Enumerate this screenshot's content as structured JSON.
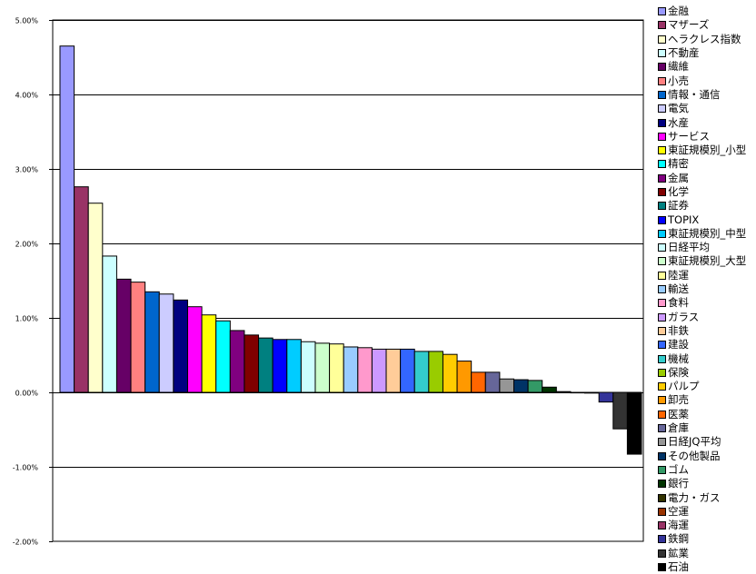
{
  "chart_data": {
    "type": "bar",
    "title": "",
    "xlabel": "",
    "ylabel": "",
    "ylim": [
      -2.0,
      5.0
    ],
    "yticks": [
      "5.00%",
      "4.00%",
      "3.00%",
      "2.00%",
      "1.00%",
      "0.00%",
      "-1.00%",
      "-2.00%"
    ],
    "ytick_values": [
      5,
      4,
      3,
      2,
      1,
      0,
      -1,
      -2
    ],
    "grid": true,
    "legend_position": "right",
    "series": [
      {
        "name": "金融",
        "value": 4.65,
        "color": "#9999ff"
      },
      {
        "name": "マザーズ",
        "value": 2.76,
        "color": "#993366"
      },
      {
        "name": "ヘラクレス指数",
        "value": 2.54,
        "color": "#ffffcc"
      },
      {
        "name": "不動産",
        "value": 1.83,
        "color": "#ccffff"
      },
      {
        "name": "繊維",
        "value": 1.52,
        "color": "#660066"
      },
      {
        "name": "小売",
        "value": 1.48,
        "color": "#ff8080"
      },
      {
        "name": "情報・通信",
        "value": 1.35,
        "color": "#0066cc"
      },
      {
        "name": "電気",
        "value": 1.32,
        "color": "#ccccff"
      },
      {
        "name": "水産",
        "value": 1.24,
        "color": "#000080"
      },
      {
        "name": "サービス",
        "value": 1.15,
        "color": "#ff00ff"
      },
      {
        "name": "東証規模別_小型",
        "value": 1.04,
        "color": "#ffff00"
      },
      {
        "name": "精密",
        "value": 0.96,
        "color": "#00ffff"
      },
      {
        "name": "金属",
        "value": 0.83,
        "color": "#800080"
      },
      {
        "name": "化学",
        "value": 0.77,
        "color": "#800000"
      },
      {
        "name": "証券",
        "value": 0.73,
        "color": "#008080"
      },
      {
        "name": "TOPIX",
        "value": 0.71,
        "color": "#0000ff"
      },
      {
        "name": "東証規模別_中型",
        "value": 0.71,
        "color": "#00ccff"
      },
      {
        "name": "日経平均",
        "value": 0.68,
        "color": "#ccffff"
      },
      {
        "name": "東証規模別_大型",
        "value": 0.66,
        "color": "#ccffcc"
      },
      {
        "name": "陸運",
        "value": 0.65,
        "color": "#ffff99"
      },
      {
        "name": "輸送",
        "value": 0.61,
        "color": "#99ccff"
      },
      {
        "name": "食料",
        "value": 0.6,
        "color": "#ff99cc"
      },
      {
        "name": "ガラス",
        "value": 0.58,
        "color": "#cc99ff"
      },
      {
        "name": "非鉄",
        "value": 0.58,
        "color": "#ffcc99"
      },
      {
        "name": "建設",
        "value": 0.58,
        "color": "#3366ff"
      },
      {
        "name": "機械",
        "value": 0.55,
        "color": "#33cccc"
      },
      {
        "name": "保険",
        "value": 0.55,
        "color": "#99cc00"
      },
      {
        "name": "パルプ",
        "value": 0.51,
        "color": "#ffcc00"
      },
      {
        "name": "卸売",
        "value": 0.42,
        "color": "#ff9900"
      },
      {
        "name": "医薬",
        "value": 0.27,
        "color": "#ff6600"
      },
      {
        "name": "倉庫",
        "value": 0.27,
        "color": "#666699"
      },
      {
        "name": "日経JQ平均",
        "value": 0.18,
        "color": "#969696"
      },
      {
        "name": "その他製品",
        "value": 0.17,
        "color": "#003366"
      },
      {
        "name": "ゴム",
        "value": 0.16,
        "color": "#339966"
      },
      {
        "name": "銀行",
        "value": 0.07,
        "color": "#003300"
      },
      {
        "name": "電力・ガス",
        "value": 0.01,
        "color": "#333300"
      },
      {
        "name": "空運",
        "value": 0.0,
        "color": "#993300"
      },
      {
        "name": "海運",
        "value": -0.01,
        "color": "#993366"
      },
      {
        "name": "鉄鋼",
        "value": -0.13,
        "color": "#333399"
      },
      {
        "name": "鉱業",
        "value": -0.49,
        "color": "#333333"
      },
      {
        "name": "石油",
        "value": -0.83,
        "color": "#000000"
      }
    ]
  }
}
